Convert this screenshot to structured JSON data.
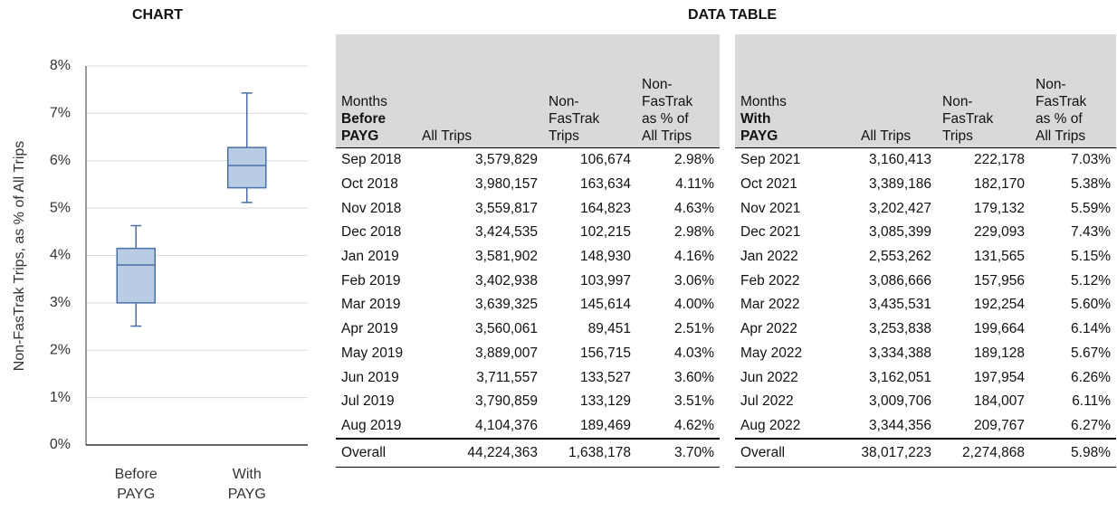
{
  "chart_heading": "CHART",
  "chart_data": {
    "type": "box",
    "ylabel": "Non-FasTrak Trips, as % of All Trips",
    "categories": [
      "Before PAYG",
      "With PAYG"
    ],
    "boxes": [
      {
        "min": 2.51,
        "q1": 3.0,
        "median": 3.8,
        "q3": 4.15,
        "max": 4.63
      },
      {
        "min": 5.12,
        "q1": 5.43,
        "median": 5.9,
        "q3": 6.28,
        "max": 7.43
      }
    ],
    "color": "#b8cce4",
    "edge_color": "#4a6fa5",
    "ylim": [
      0,
      8
    ],
    "yticks": [
      {
        "value": 0,
        "label": "0%"
      },
      {
        "value": 1,
        "label": "1%"
      },
      {
        "value": 2,
        "label": "2%"
      },
      {
        "value": 3,
        "label": "3%"
      },
      {
        "value": 4,
        "label": "4%"
      },
      {
        "value": 5,
        "label": "5%"
      },
      {
        "value": 6,
        "label": "6%"
      },
      {
        "value": 7,
        "label": "7%"
      },
      {
        "value": 8,
        "label": "8%"
      }
    ],
    "grid": true
  },
  "data_table": {
    "heading": "DATA TABLE",
    "tables": [
      {
        "header": [
          {
            "text": "Months",
            "bold": "Before PAYG"
          },
          "All Trips",
          "Non-FasTrak Trips",
          "Non-FasTrak as % of All Trips"
        ],
        "rows": [
          [
            "Sep 2018",
            "3,579,829",
            "106,674",
            "2.98%"
          ],
          [
            "Oct 2018",
            "3,980,157",
            "163,634",
            "4.11%"
          ],
          [
            "Nov 2018",
            "3,559,817",
            "164,823",
            "4.63%"
          ],
          [
            "Dec 2018",
            "3,424,535",
            "102,215",
            "2.98%"
          ],
          [
            "Jan 2019",
            "3,581,902",
            "148,930",
            "4.16%"
          ],
          [
            "Feb 2019",
            "3,402,938",
            "103,997",
            "3.06%"
          ],
          [
            "Mar 2019",
            "3,639,325",
            "145,614",
            "4.00%"
          ],
          [
            "Apr 2019",
            "3,560,061",
            "89,451",
            "2.51%"
          ],
          [
            "May 2019",
            "3,889,007",
            "156,715",
            "4.03%"
          ],
          [
            "Jun 2019",
            "3,711,557",
            "133,527",
            "3.60%"
          ],
          [
            "Jul 2019",
            "3,790,859",
            "133,129",
            "3.51%"
          ],
          [
            "Aug 2019",
            "4,104,376",
            "189,469",
            "4.62%"
          ]
        ],
        "footer": [
          "Overall",
          "44,224,363",
          "1,638,178",
          "3.70%"
        ]
      },
      {
        "header": [
          {
            "text": "Months",
            "bold": "With PAYG"
          },
          "All Trips",
          "Non-FasTrak Trips",
          "Non-FasTrak as % of All Trips"
        ],
        "rows": [
          [
            "Sep 2021",
            "3,160,413",
            "222,178",
            "7.03%"
          ],
          [
            "Oct 2021",
            "3,389,186",
            "182,170",
            "5.38%"
          ],
          [
            "Nov 2021",
            "3,202,427",
            "179,132",
            "5.59%"
          ],
          [
            "Dec 2021",
            "3,085,399",
            "229,093",
            "7.43%"
          ],
          [
            "Jan 2022",
            "2,553,262",
            "131,565",
            "5.15%"
          ],
          [
            "Feb 2022",
            "3,086,666",
            "157,956",
            "5.12%"
          ],
          [
            "Mar 2022",
            "3,435,531",
            "192,254",
            "5.60%"
          ],
          [
            "Apr 2022",
            "3,253,838",
            "199,664",
            "6.14%"
          ],
          [
            "May 2022",
            "3,334,388",
            "189,128",
            "5.67%"
          ],
          [
            "Jun 2022",
            "3,162,051",
            "197,954",
            "6.26%"
          ],
          [
            "Jul 2022",
            "3,009,706",
            "184,007",
            "6.11%"
          ],
          [
            "Aug 2022",
            "3,344,356",
            "209,767",
            "6.27%"
          ]
        ],
        "footer": [
          "Overall",
          "38,017,223",
          "2,274,868",
          "5.98%"
        ]
      }
    ]
  }
}
